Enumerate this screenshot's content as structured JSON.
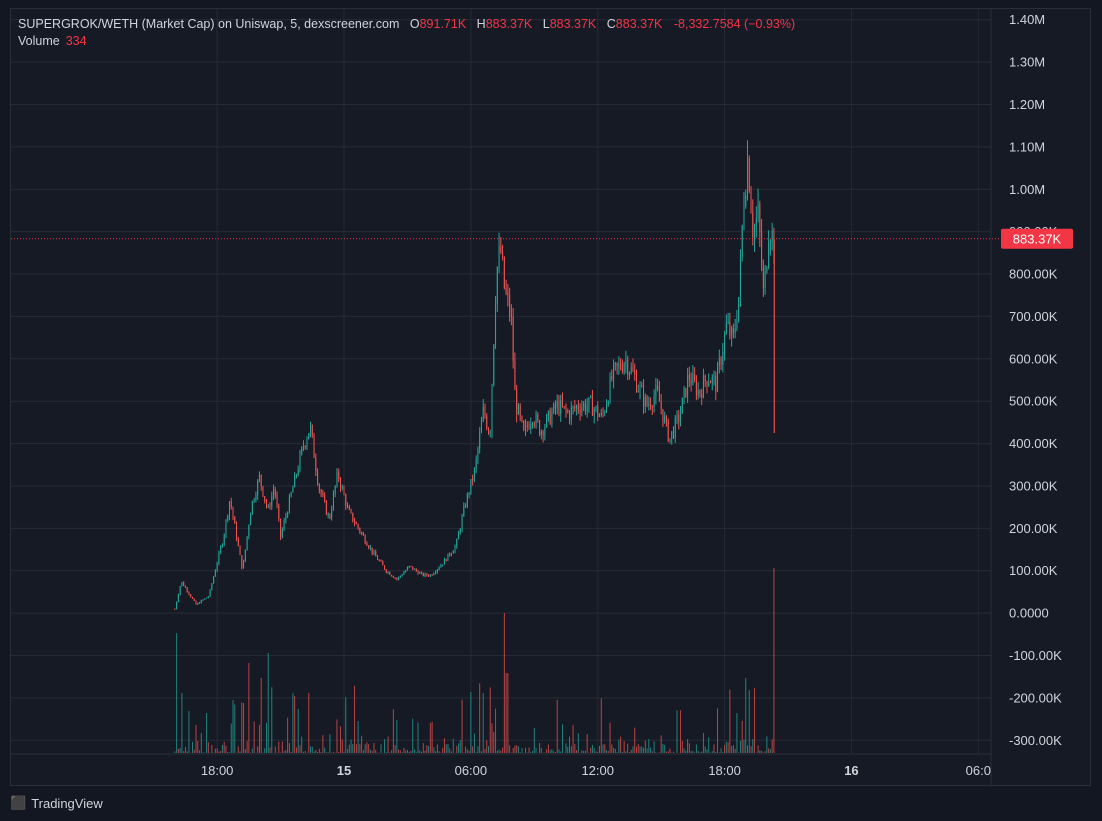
{
  "legend": {
    "title": "SUPERGROK/WETH (Market Cap) on Uniswap, 5, dexscreener.com",
    "o_label": "O",
    "o_value": "891.71K",
    "h_label": "H",
    "h_value": "883.37K",
    "l_label": "L",
    "l_value": "883.37K",
    "c_label": "C",
    "c_value": "883.37K",
    "change": "-8,332.7584 (−0.93%)",
    "volume_label": "Volume",
    "volume_value": "334"
  },
  "branding": {
    "name": "TradingView"
  },
  "colors": {
    "up": "#26a69a",
    "down": "#ef5350",
    "price_line": "#f23645",
    "background": "#161a25",
    "grid": "#262a36",
    "axis_text": "#d1d4dc"
  },
  "chart_data": {
    "type": "candlestick",
    "price_axis": {
      "ticks": [
        "1.40M",
        "1.30M",
        "1.20M",
        "1.10M",
        "1.00M",
        "900.00K",
        "800.00K",
        "700.00K",
        "600.00K",
        "500.00K",
        "400.00K",
        "300.00K",
        "200.00K",
        "100.00K",
        "0.0000",
        "-100.00K",
        "-200.00K",
        "-300.00K"
      ],
      "tick_values": [
        1400000,
        1300000,
        1200000,
        1100000,
        1000000,
        900000,
        800000,
        700000,
        600000,
        500000,
        400000,
        300000,
        200000,
        100000,
        0,
        -100000,
        -200000,
        -300000
      ],
      "range": [
        -330000,
        1430000
      ]
    },
    "time_axis": {
      "labels": [
        "18:00",
        "15",
        "06:00",
        "12:00",
        "18:00",
        "16",
        "06:0"
      ],
      "bold": [
        false,
        true,
        false,
        false,
        false,
        true,
        false
      ],
      "label_hours": [
        18,
        24,
        30,
        36,
        42,
        48,
        54
      ],
      "range_hours": [
        8.25,
        54.6
      ]
    },
    "current_price": {
      "value": 883370,
      "label": "883.37K"
    },
    "key_points": [
      [
        16.0,
        10000
      ],
      [
        16.3,
        75000
      ],
      [
        17.0,
        20000
      ],
      [
        17.6,
        40000
      ],
      [
        18.3,
        180000
      ],
      [
        18.6,
        270000
      ],
      [
        19.2,
        100000
      ],
      [
        19.6,
        250000
      ],
      [
        20.0,
        320000
      ],
      [
        20.4,
        240000
      ],
      [
        20.7,
        300000
      ],
      [
        21.0,
        180000
      ],
      [
        21.8,
        340000
      ],
      [
        22.1,
        400000
      ],
      [
        22.4,
        440000
      ],
      [
        22.8,
        300000
      ],
      [
        23.3,
        220000
      ],
      [
        23.7,
        330000
      ],
      [
        24.2,
        240000
      ],
      [
        24.8,
        190000
      ],
      [
        25.4,
        140000
      ],
      [
        26.0,
        100000
      ],
      [
        26.5,
        80000
      ],
      [
        27.1,
        110000
      ],
      [
        27.7,
        90000
      ],
      [
        28.1,
        90000
      ],
      [
        28.7,
        120000
      ],
      [
        29.3,
        160000
      ],
      [
        29.7,
        250000
      ],
      [
        30.2,
        340000
      ],
      [
        30.6,
        480000
      ],
      [
        30.9,
        420000
      ],
      [
        31.2,
        800000
      ],
      [
        31.4,
        860000
      ],
      [
        31.6,
        760000
      ],
      [
        31.9,
        700000
      ],
      [
        32.1,
        500000
      ],
      [
        32.5,
        420000
      ],
      [
        32.9,
        470000
      ],
      [
        33.3,
        430000
      ],
      [
        34.1,
        490000
      ],
      [
        34.6,
        470000
      ],
      [
        35.1,
        490000
      ],
      [
        35.7,
        490000
      ],
      [
        36.2,
        460000
      ],
      [
        36.7,
        560000
      ],
      [
        37.3,
        600000
      ],
      [
        37.8,
        550000
      ],
      [
        38.3,
        490000
      ],
      [
        38.8,
        520000
      ],
      [
        39.4,
        410000
      ],
      [
        39.9,
        470000
      ],
      [
        40.3,
        560000
      ],
      [
        40.8,
        520000
      ],
      [
        41.2,
        560000
      ],
      [
        41.6,
        540000
      ],
      [
        42.1,
        680000
      ],
      [
        42.4,
        640000
      ],
      [
        42.7,
        760000
      ],
      [
        42.9,
        980000
      ],
      [
        43.1,
        1080000
      ],
      [
        43.35,
        900000
      ],
      [
        43.6,
        940000
      ],
      [
        43.85,
        740000
      ],
      [
        44.1,
        920000
      ],
      [
        44.3,
        880000
      ],
      [
        44.38,
        883370
      ]
    ],
    "spikes": [
      {
        "hour": 44.35,
        "low": 425000
      }
    ],
    "volume_peaks": [
      [
        16.1,
        120
      ],
      [
        16.3,
        60
      ],
      [
        17.5,
        40
      ],
      [
        19.2,
        50
      ],
      [
        19.5,
        90
      ],
      [
        20.1,
        75
      ],
      [
        20.4,
        100
      ],
      [
        22.3,
        60
      ],
      [
        25.4,
        10
      ],
      [
        30.6,
        60
      ],
      [
        31.6,
        140
      ],
      [
        31.7,
        80
      ],
      [
        33.0,
        25
      ],
      [
        41.0,
        20
      ],
      [
        42.6,
        40
      ],
      [
        43.0,
        75
      ],
      [
        44.35,
        185
      ]
    ],
    "volume_max": 190
  }
}
